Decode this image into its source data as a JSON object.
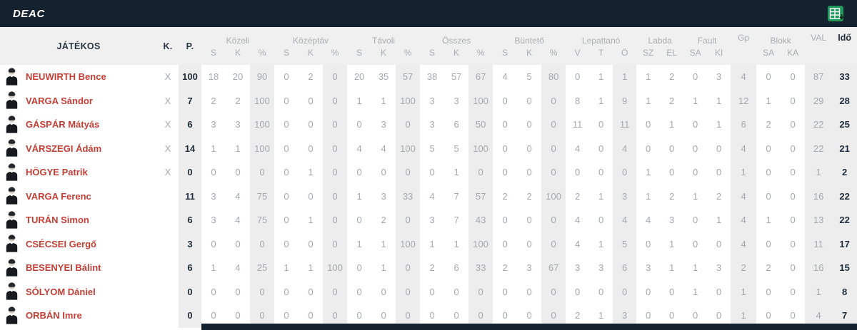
{
  "topbar": {
    "title": "DEAC"
  },
  "colors": {
    "topbar_bg": "#14222f",
    "player_name_red": "#c23f36",
    "muted_number_gray": "#a5a8ad",
    "dark_navy_text": "#1f2d3a",
    "stripe_gray": "#ededee",
    "header_bg": "#f0f0f1",
    "export_icon_green": "#23985d"
  },
  "icons": {
    "export": "excel-export-icon",
    "player": "player-avatar-icon"
  },
  "table": {
    "header": {
      "jatekos": "JÁTÉKOS",
      "k": "K.",
      "p": "P.",
      "groups": [
        {
          "label": "Közeli",
          "cols": [
            "S",
            "K",
            "%"
          ]
        },
        {
          "label": "Középtáv",
          "cols": [
            "S",
            "K",
            "%"
          ]
        },
        {
          "label": "Távoli",
          "cols": [
            "S",
            "K",
            "%"
          ]
        },
        {
          "label": "Összes",
          "cols": [
            "S",
            "K",
            "%"
          ]
        },
        {
          "label": "Büntető",
          "cols": [
            "S",
            "K",
            "%"
          ]
        },
        {
          "label": "Lepattanó",
          "cols": [
            "V",
            "T",
            "Ö"
          ]
        },
        {
          "label": "Labda",
          "cols": [
            "SZ",
            "EL"
          ]
        },
        {
          "label": "Fault",
          "cols": [
            "SA",
            "KI"
          ]
        },
        {
          "label": "Gp",
          "cols": []
        },
        {
          "label": "Blokk",
          "cols": [
            "SA",
            "KA"
          ]
        },
        {
          "label": "VAL",
          "cols": []
        },
        {
          "label": "Idő",
          "cols": []
        }
      ]
    },
    "rows": [
      {
        "name": "NEUWIRTH Bence",
        "k": "X",
        "p": "100",
        "stats": [
          18,
          20,
          90,
          0,
          2,
          0,
          20,
          35,
          57,
          38,
          57,
          67,
          4,
          5,
          80,
          0,
          1,
          1,
          1,
          2,
          0,
          3,
          4,
          0,
          0,
          87,
          33
        ]
      },
      {
        "name": "VARGA Sándor",
        "k": "X",
        "p": "7",
        "stats": [
          2,
          2,
          100,
          0,
          0,
          0,
          1,
          1,
          100,
          3,
          3,
          100,
          0,
          0,
          0,
          8,
          1,
          9,
          1,
          2,
          1,
          1,
          12,
          1,
          0,
          29,
          28
        ]
      },
      {
        "name": "GÁSPÁR Mátyás",
        "k": "X",
        "p": "6",
        "stats": [
          3,
          3,
          100,
          0,
          0,
          0,
          0,
          3,
          0,
          3,
          6,
          50,
          0,
          0,
          0,
          11,
          0,
          11,
          0,
          1,
          0,
          1,
          6,
          2,
          0,
          22,
          25
        ]
      },
      {
        "name": "VÁRSZEGI Ádám",
        "k": "X",
        "p": "14",
        "stats": [
          1,
          1,
          100,
          0,
          0,
          0,
          4,
          4,
          100,
          5,
          5,
          100,
          0,
          0,
          0,
          4,
          0,
          4,
          0,
          0,
          0,
          0,
          4,
          0,
          0,
          22,
          21
        ]
      },
      {
        "name": "HÖGYE Patrik",
        "k": "X",
        "p": "0",
        "stats": [
          0,
          0,
          0,
          0,
          1,
          0,
          0,
          0,
          0,
          0,
          1,
          0,
          0,
          0,
          0,
          0,
          0,
          0,
          1,
          0,
          0,
          0,
          1,
          0,
          0,
          1,
          2
        ]
      },
      {
        "name": "VARGA Ferenc",
        "k": "",
        "p": "11",
        "stats": [
          3,
          4,
          75,
          0,
          0,
          0,
          1,
          3,
          33,
          4,
          7,
          57,
          2,
          2,
          100,
          2,
          1,
          3,
          1,
          2,
          1,
          2,
          4,
          0,
          0,
          16,
          22
        ]
      },
      {
        "name": "TURÁN Simon",
        "k": "",
        "p": "6",
        "stats": [
          3,
          4,
          75,
          0,
          1,
          0,
          0,
          2,
          0,
          3,
          7,
          43,
          0,
          0,
          0,
          4,
          0,
          4,
          4,
          3,
          0,
          1,
          4,
          1,
          0,
          13,
          22
        ]
      },
      {
        "name": "CSÉCSEI Gergő",
        "k": "",
        "p": "3",
        "stats": [
          0,
          0,
          0,
          0,
          0,
          0,
          1,
          1,
          100,
          1,
          1,
          100,
          0,
          0,
          0,
          4,
          1,
          5,
          0,
          1,
          0,
          0,
          4,
          0,
          0,
          11,
          17
        ]
      },
      {
        "name": "BESENYEI Bálint",
        "k": "",
        "p": "6",
        "stats": [
          1,
          4,
          25,
          1,
          1,
          100,
          0,
          1,
          0,
          2,
          6,
          33,
          2,
          3,
          67,
          3,
          3,
          6,
          3,
          1,
          1,
          3,
          2,
          2,
          0,
          16,
          15
        ]
      },
      {
        "name": "SÓLYOM Dániel",
        "k": "",
        "p": "0",
        "stats": [
          0,
          0,
          0,
          0,
          0,
          0,
          0,
          0,
          0,
          0,
          0,
          0,
          0,
          0,
          0,
          0,
          0,
          0,
          0,
          0,
          1,
          0,
          1,
          0,
          0,
          1,
          8
        ]
      },
      {
        "name": "ORBÁN Imre",
        "k": "",
        "p": "0",
        "stats": [
          0,
          0,
          0,
          0,
          0,
          0,
          0,
          0,
          0,
          0,
          0,
          0,
          0,
          0,
          0,
          2,
          1,
          3,
          0,
          0,
          0,
          0,
          1,
          0,
          0,
          4,
          7
        ]
      }
    ]
  }
}
